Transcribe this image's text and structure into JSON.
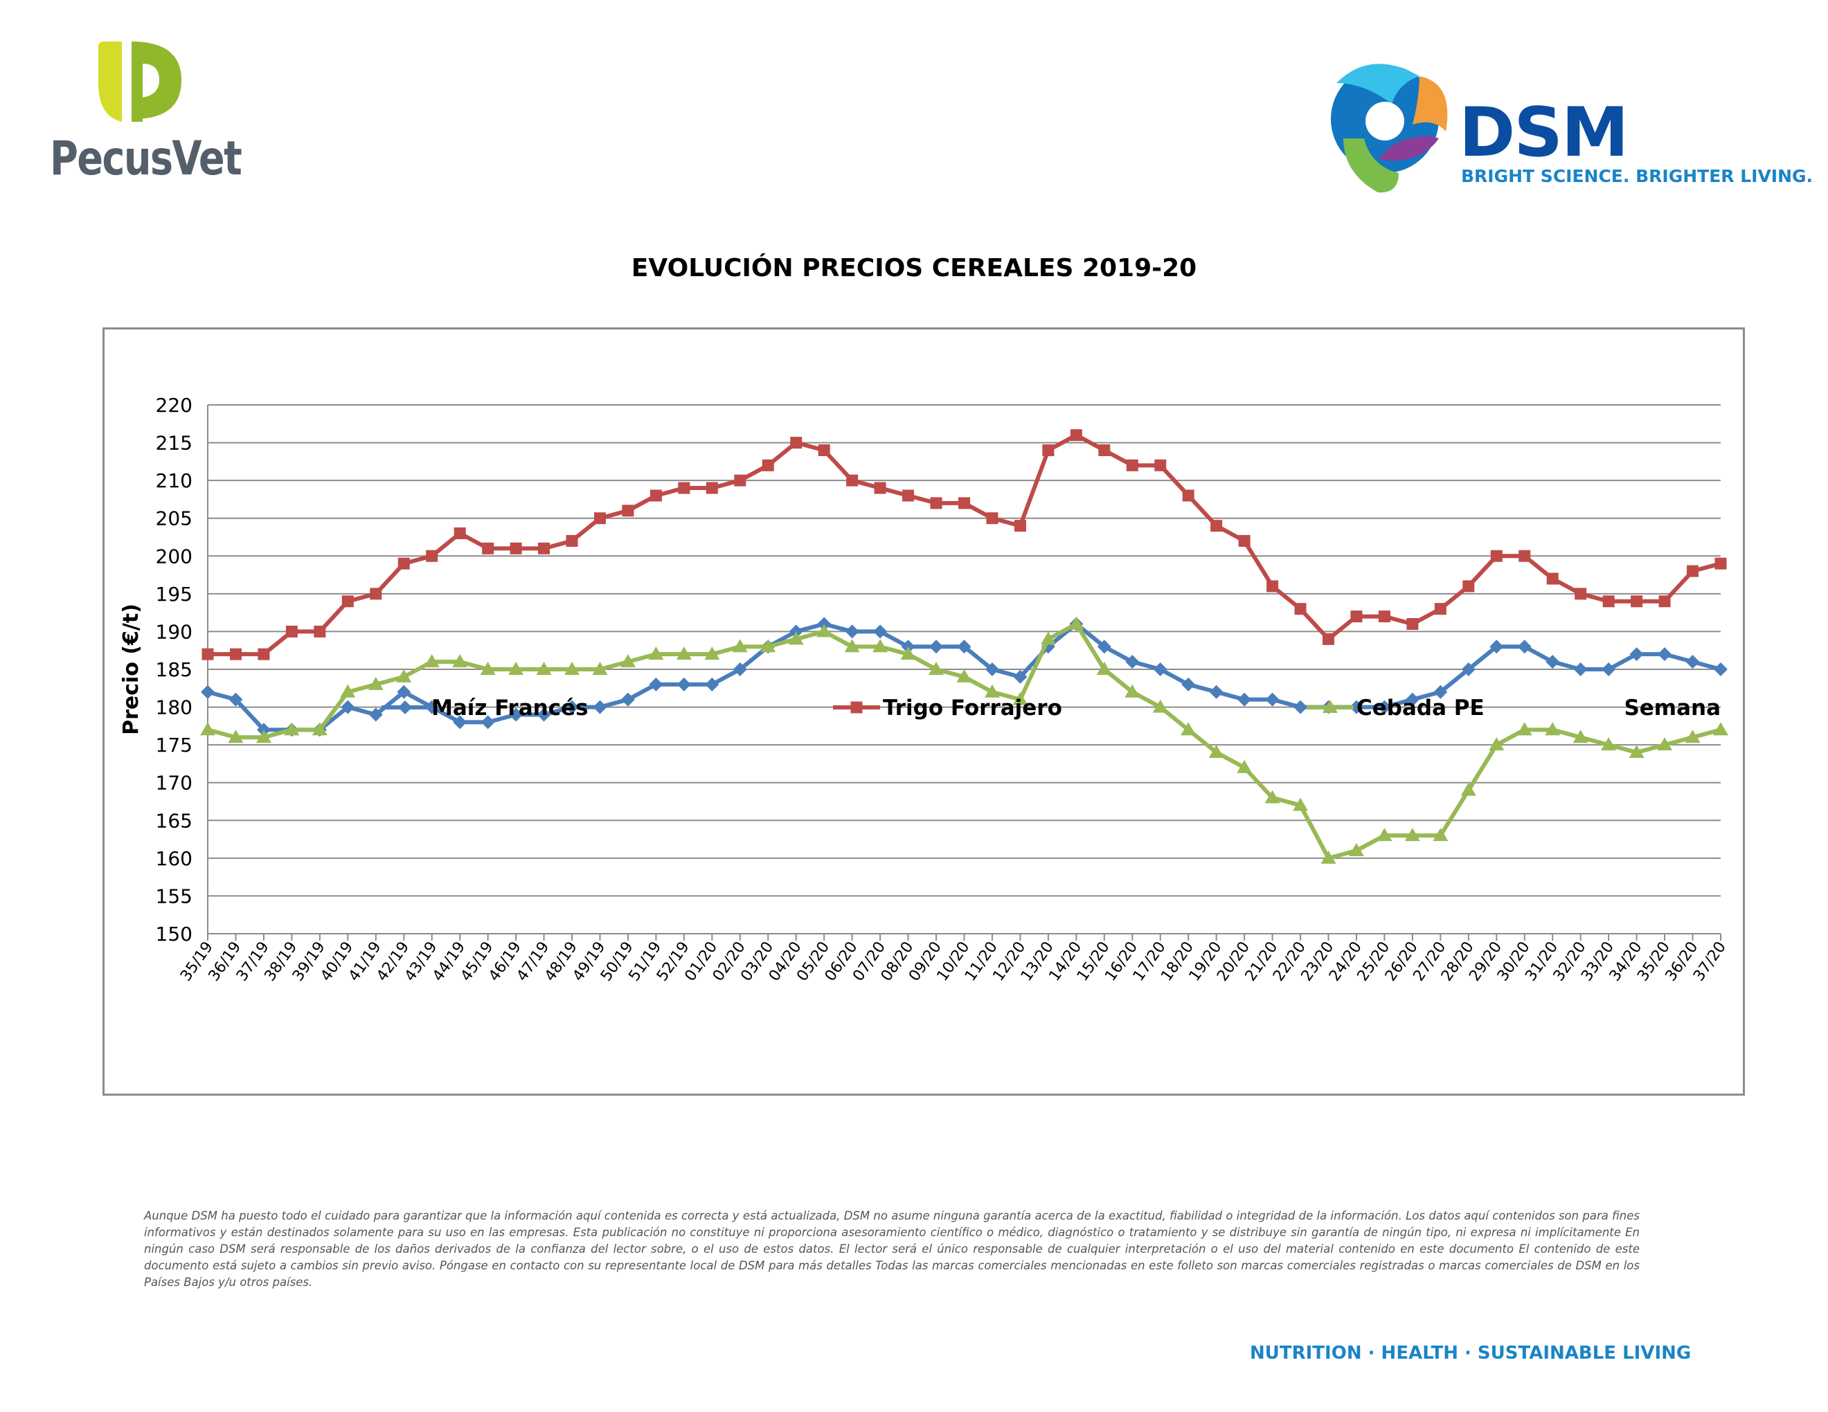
{
  "brand_left": {
    "name": "PecusVet",
    "colors": {
      "green": "#b6cf1c",
      "text": "#545f6b"
    }
  },
  "brand_right": {
    "name": "DSM",
    "tagline": "BRIGHT SCIENCE. BRIGHTER LIVING.",
    "colors": {
      "blue": "#0b4da0",
      "light_blue": "#1b84c6"
    }
  },
  "footer": {
    "disclaimer": "Aunque DSM ha puesto todo el cuidado para garantizar que la información aquí contenida es correcta y está actualizada, DSM no asume ninguna garantía acerca de la exactitud, fiabilidad o integridad de la información. Los datos aquí contenidos son para fines informativos y están destinados solamente para su uso en las empresas. Esta publicación no constituye ni proporciona asesoramiento científico o médico, diagnóstico o tratamiento y se distribuye sin garantía de ningún tipo, ni expresa ni implícitamente En ningún caso DSM será responsable de los daños derivados de la confianza del lector sobre, o el uso de estos datos. El lector será el único responsable de cualquier interpretación o el uso del material contenido en este documento El contenido de este documento está sujeto a cambios sin previo aviso. Póngase en contacto con su representante local de DSM para más detalles Todas las marcas comerciales mencionadas en este folleto son marcas comerciales registradas o marcas comerciales de DSM en los Países Bajos y/u otros países.",
    "tagline": "NUTRITION · HEALTH · SUSTAINABLE LIVING"
  },
  "chart_data": {
    "type": "line",
    "title": "EVOLUCIÓN PRECIOS CEREALES 2019-20",
    "xlabel": "Semana",
    "ylabel": "Precio (€/t)",
    "ylim": [
      150,
      220
    ],
    "ytick_step": 5,
    "grid": true,
    "legend_position": "bottom",
    "categories": [
      "35/19",
      "36/19",
      "37/19",
      "38/19",
      "39/19",
      "40/19",
      "41/19",
      "42/19",
      "43/19",
      "44/19",
      "45/19",
      "46/19",
      "47/19",
      "48/19",
      "49/19",
      "50/19",
      "51/19",
      "52/19",
      "01/20",
      "02/20",
      "03/20",
      "04/20",
      "05/20",
      "06/20",
      "07/20",
      "08/20",
      "09/20",
      "10/20",
      "11/20",
      "12/20",
      "13/20",
      "14/20",
      "15/20",
      "16/20",
      "17/20",
      "18/20",
      "19/20",
      "20/20",
      "21/20",
      "22/20",
      "23/20",
      "24/20",
      "25/20",
      "26/20",
      "27/20",
      "28/20",
      "29/20",
      "30/20",
      "31/20",
      "32/20",
      "33/20",
      "34/20",
      "35/20",
      "36/20",
      "37/20"
    ],
    "series": [
      {
        "name": "Maíz Francés",
        "color": "#4a7ebb",
        "marker": "diamond",
        "values": [
          182,
          181,
          177,
          177,
          177,
          180,
          179,
          182,
          180,
          178,
          178,
          179,
          179,
          180,
          180,
          181,
          183,
          183,
          183,
          185,
          188,
          190,
          191,
          190,
          190,
          188,
          188,
          188,
          185,
          184,
          188,
          191,
          188,
          186,
          185,
          183,
          182,
          181,
          181,
          180,
          180,
          180,
          180,
          181,
          182,
          185,
          188,
          188,
          186,
          185,
          185,
          187,
          187,
          186,
          185
        ]
      },
      {
        "name": "Trigo Forrajero",
        "color": "#be4b48",
        "marker": "square",
        "values": [
          187,
          187,
          187,
          190,
          190,
          194,
          195,
          199,
          200,
          203,
          201,
          201,
          201,
          202,
          205,
          206,
          208,
          209,
          209,
          210,
          212,
          215,
          214,
          210,
          209,
          208,
          207,
          207,
          205,
          204,
          214,
          216,
          214,
          212,
          212,
          208,
          204,
          202,
          196,
          193,
          189,
          192,
          192,
          191,
          193,
          196,
          200,
          200,
          197,
          195,
          194,
          194,
          194,
          198,
          199
        ]
      },
      {
        "name": "Cebada PE",
        "color": "#98b954",
        "marker": "triangle",
        "values": [
          177,
          176,
          176,
          177,
          177,
          182,
          183,
          184,
          186,
          186,
          185,
          185,
          185,
          185,
          185,
          186,
          187,
          187,
          187,
          188,
          188,
          189,
          190,
          188,
          188,
          187,
          185,
          184,
          182,
          181,
          189,
          191,
          185,
          182,
          180,
          177,
          174,
          172,
          168,
          167,
          160,
          161,
          163,
          163,
          163,
          169,
          175,
          177,
          177,
          176,
          175,
          174,
          175,
          176,
          177
        ]
      }
    ]
  }
}
